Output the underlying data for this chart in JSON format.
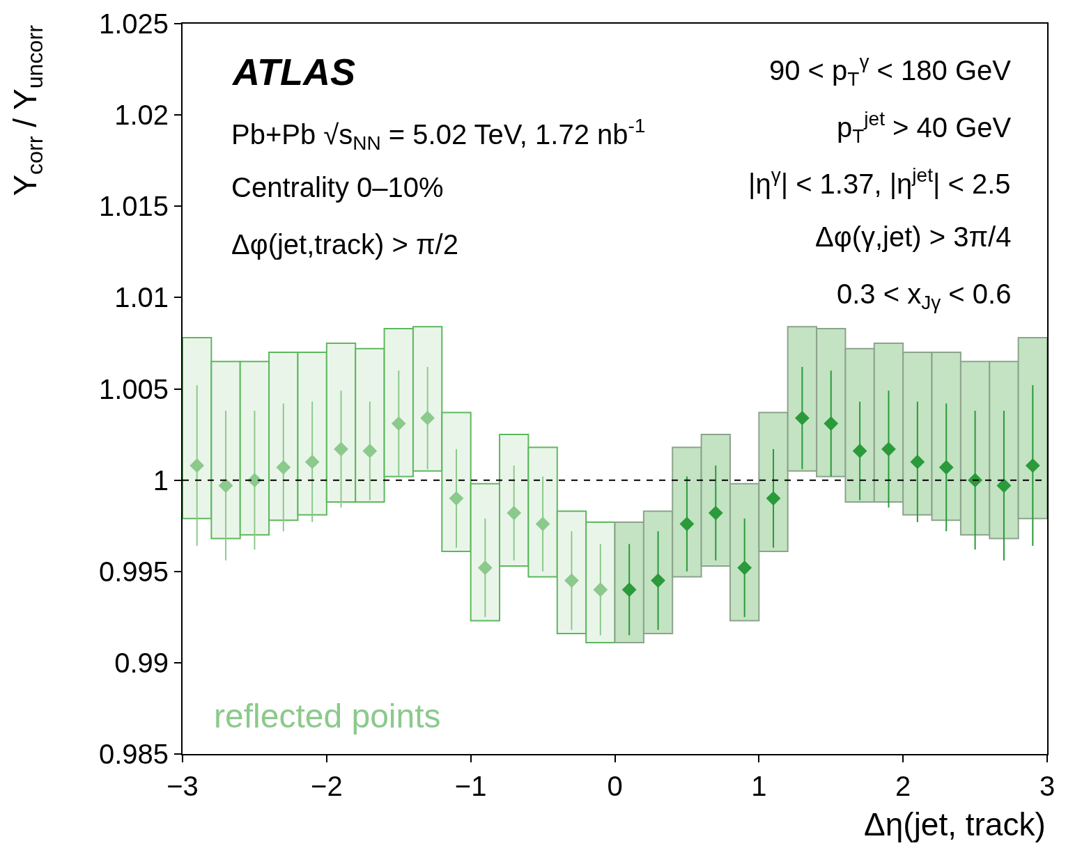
{
  "chart_data": {
    "type": "scatter",
    "xlabel": "Δη(jet, track)",
    "ylabel": "Y$_{corr}$ / Y$_{uncorr}$",
    "annotations": [
      "ATLAS",
      "Pb+Pb √s$_{NN}$ = 5.02 TeV, 1.72 nb$^{-1}$",
      "Centrality 0–10%",
      "Δφ(jet,track) > π/2",
      "90 < p$_{T}$$^{γ}$ < 180 GeV",
      "p$_{T}$$^{jet}$ > 40 GeV",
      "|η$^{γ}$| < 1.37, |η$^{jet}$| < 2.5",
      "Δφ(γ,jet) > 3π/4",
      "0.3 < x$_{Jγ}$ < 0.6"
    ],
    "xlim": [
      -3,
      3
    ],
    "xticks": [
      {
        "value": -3,
        "label": "−3"
      },
      {
        "value": -2,
        "label": "−2"
      },
      {
        "value": -1,
        "label": "−1"
      },
      0,
      1,
      2,
      3
    ],
    "ylim": [
      0.985,
      1.025
    ],
    "yticks": [
      0.985,
      0.99,
      0.995,
      1,
      1.005,
      1.01,
      1.015,
      1.02,
      1.025
    ],
    "marker": "diamond",
    "ref_lines": [
      {
        "axis": "y",
        "value": 1,
        "color": "#000000",
        "line_style": "dashed"
      }
    ],
    "series": [
      {
        "type": "bar",
        "color": "#eaf5ea",
        "x": [
          -2.9,
          -2.7,
          -2.5,
          -2.3,
          -2.1,
          -1.9,
          -1.7,
          -1.5,
          -1.3,
          -1.1,
          -0.9,
          -0.7,
          -0.5,
          -0.3,
          -0.1
        ],
        "base": [
          0.9979,
          0.9968,
          0.997,
          0.9978,
          0.9981,
          0.9988,
          0.9988,
          1.0002,
          1.0005,
          0.9961,
          0.9923,
          0.9953,
          0.9947,
          0.9916,
          0.9911
        ],
        "values": [
          0.0099,
          0.0097,
          0.0095,
          0.0092,
          0.0089,
          0.0087,
          0.0084,
          0.0081,
          0.0079,
          0.0076,
          0.0075,
          0.0072,
          0.0071,
          0.0067,
          0.0066
        ]
      },
      {
        "type": "bar",
        "color": "#c3e3c3",
        "x": [
          0.1,
          0.3,
          0.5,
          0.7,
          0.9,
          1.1,
          1.3,
          1.5,
          1.7,
          1.9,
          2.1,
          2.3,
          2.5,
          2.7,
          2.9
        ],
        "base": [
          0.9911,
          0.9916,
          0.9947,
          0.9953,
          0.9923,
          0.9961,
          1.0005,
          1.0002,
          0.9988,
          0.9988,
          0.9981,
          0.9978,
          0.997,
          0.9968,
          0.9979
        ],
        "values": [
          0.0066,
          0.0067,
          0.0071,
          0.0072,
          0.0075,
          0.0076,
          0.0079,
          0.0081,
          0.0084,
          0.0087,
          0.0089,
          0.0092,
          0.0095,
          0.0097,
          0.0099
        ]
      },
      {
        "name": "reflected points",
        "color": "#8cc98c",
        "x": [
          -2.9,
          -2.7,
          -2.5,
          -2.3,
          -2.1,
          -1.9,
          -1.7,
          -1.5,
          -1.3,
          -1.1,
          -0.9,
          -0.7,
          -0.5,
          -0.3,
          -0.1
        ],
        "values": [
          1.0008,
          0.9997,
          1.0,
          1.0007,
          1.001,
          1.0017,
          1.0016,
          1.0031,
          1.0034,
          0.999,
          0.9952,
          0.9982,
          0.9976,
          0.9945,
          0.994
        ],
        "errors": [
          0.0044,
          0.0041,
          0.0038,
          0.0035,
          0.0033,
          0.0032,
          0.0027,
          0.0029,
          0.0028,
          0.0027,
          0.0027,
          0.0026,
          0.0026,
          0.0027,
          0.0025
        ]
      },
      {
        "color": "#2a9a3a",
        "x": [
          0.1,
          0.3,
          0.5,
          0.7,
          0.9,
          1.1,
          1.3,
          1.5,
          1.7,
          1.9,
          2.1,
          2.3,
          2.5,
          2.7,
          2.9
        ],
        "values": [
          0.994,
          0.9945,
          0.9976,
          0.9982,
          0.9952,
          0.999,
          1.0034,
          1.0031,
          1.0016,
          1.0017,
          1.001,
          1.0007,
          1.0,
          0.9997,
          1.0008
        ],
        "errors": [
          0.0025,
          0.0027,
          0.0026,
          0.0026,
          0.0027,
          0.0027,
          0.0028,
          0.0029,
          0.0027,
          0.0032,
          0.0033,
          0.0035,
          0.0038,
          0.0041,
          0.0044
        ]
      }
    ]
  }
}
